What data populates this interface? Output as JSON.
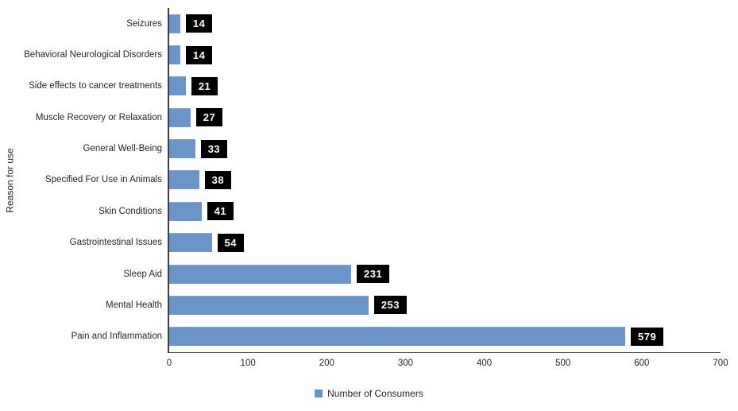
{
  "chart_data": {
    "type": "bar",
    "orientation": "horizontal",
    "title": "",
    "xlabel": "",
    "ylabel": "Reason for use",
    "categories": [
      "Seizures",
      "Behavioral Neurological Disorders",
      "Side effects to cancer treatments",
      "Muscle Recovery or Relaxation",
      "General Well-Being",
      "Specified For Use in Animals",
      "Skin Conditions",
      "Gastrointestinal Issues",
      "Sleep Aid",
      "Mental Health",
      "Pain and Inflammation"
    ],
    "values": [
      14,
      14,
      21,
      27,
      33,
      38,
      41,
      54,
      231,
      253,
      579
    ],
    "data_labels": [
      "14",
      "14",
      "21",
      "27",
      "33",
      "38",
      "41",
      "54",
      "231",
      "253",
      "579"
    ],
    "xlim": [
      0,
      700
    ],
    "xticks": [
      0,
      100,
      200,
      300,
      400,
      500,
      600,
      700
    ],
    "grid": false,
    "legend_position": "bottom",
    "legend_label": "Number of Consumers",
    "colors": {
      "bar": "#6d94c6",
      "data_label_background": "#000000",
      "data_label_text": "#ffffff",
      "axis_line": "#3f3f3f",
      "text": "#262626"
    }
  }
}
